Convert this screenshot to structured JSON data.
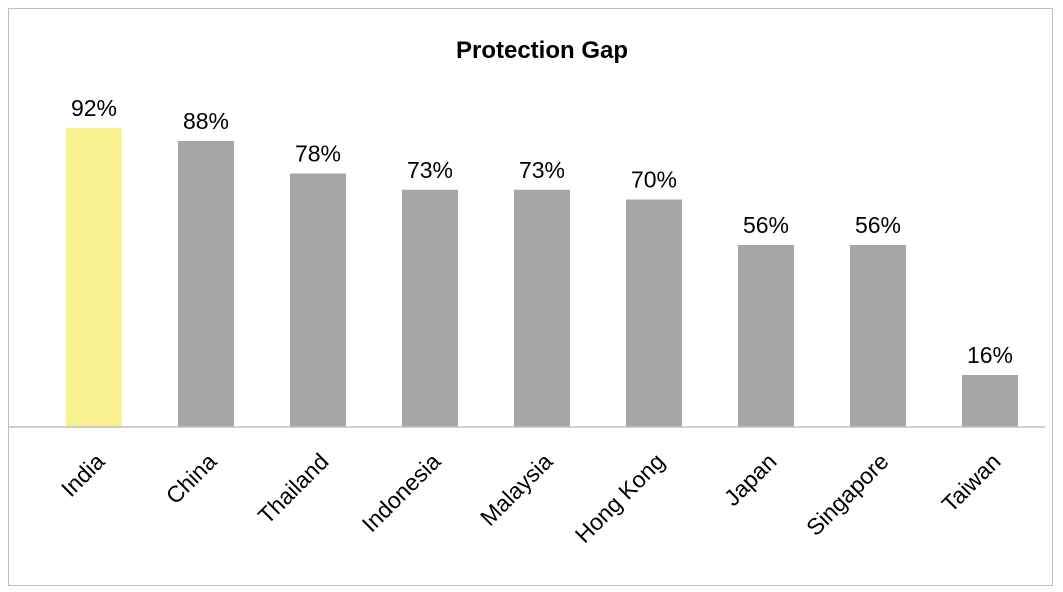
{
  "chart_data": {
    "type": "bar",
    "title": "Protection Gap",
    "xlabel": "",
    "ylabel": "",
    "categories": [
      "India",
      "China",
      "Thailand",
      "Indonesia",
      "Malaysia",
      "Hong Kong",
      "Japan",
      "Singapore",
      "Taiwan"
    ],
    "values": [
      92,
      88,
      78,
      73,
      73,
      70,
      56,
      56,
      16
    ],
    "value_labels": [
      "92%",
      "88%",
      "78%",
      "73%",
      "73%",
      "70%",
      "56%",
      "56%",
      "16%"
    ],
    "ylim": [
      0,
      100
    ],
    "grid": false,
    "legend": "none",
    "colors": {
      "highlight": "#f8f190",
      "default": "#a6a6a6",
      "axis": "#bfbfbf"
    },
    "highlight_index": 0
  }
}
